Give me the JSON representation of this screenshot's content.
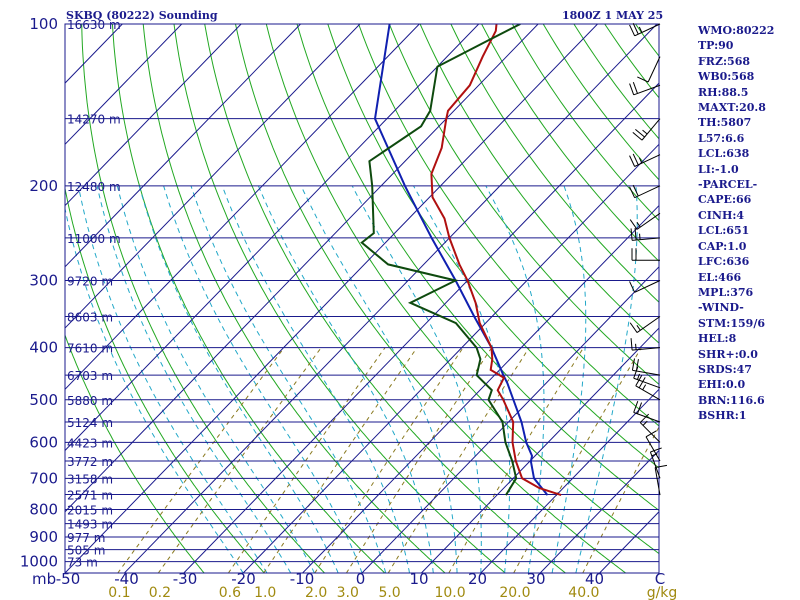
{
  "header": {
    "station": "SKBQ (80222) Sounding",
    "time": "1800Z  1 MAY 25"
  },
  "indices": [
    "WMO:80222",
    "TP:90",
    "FRZ:568",
    "WB0:568",
    "RH:88.5",
    "MAXT:20.8",
    "TH:5807",
    "L57:6.6",
    "LCL:638",
    "LI:-1.0",
    "-PARCEL-",
    "CAPE:66",
    "CINH:4",
    "LCL:651",
    "CAP:1.0",
    "LFC:636",
    "EL:466",
    "MPL:376",
    "-WIND-",
    "STM:159/6",
    "HEL:8",
    "SHR+:0.0",
    "SRDS:47",
    "EHI:0.0",
    "BRN:116.6",
    "BSHR:1"
  ],
  "colors": {
    "frame": "#1a1a8c",
    "isobar": "#1a1a8c",
    "isotherm": "#1a1a8c",
    "dry_adiabat": "#22a822",
    "moist_adiabat": "#22a8c8",
    "mixing_ratio": "#8a7a20",
    "temperature": "#b01010",
    "dewpoint": "#0e4a0e",
    "parcel": "#1020b0",
    "wind": "#000000"
  },
  "chart_data": {
    "type": "skew-t",
    "pressure_axis": {
      "unit": "mb",
      "ticks": [
        100,
        200,
        300,
        400,
        500,
        600,
        700,
        800,
        900,
        1000
      ],
      "range": [
        100,
        1050
      ],
      "scale": "log"
    },
    "temperature_axis": {
      "unit": "C",
      "ticks": [
        -50,
        -40,
        -30,
        -20,
        -10,
        0,
        10,
        20,
        30,
        40
      ],
      "last_label": "C",
      "range_at_bottom": [
        -50,
        50
      ]
    },
    "mixing_ratio_axis": {
      "unit": "g/kg",
      "labels": [
        "0.1",
        "0.2",
        "0.6",
        "1.0",
        "2.0",
        "3.0",
        "5.0",
        "10.0",
        "20.0",
        "40.0"
      ],
      "values": [
        0.1,
        0.2,
        0.6,
        1.0,
        2.0,
        3.0,
        5.0,
        10.0,
        20.0,
        40.0
      ]
    },
    "height_levels": [
      {
        "p": 100,
        "label": "16630 m"
      },
      {
        "p": 150,
        "label": "14270 m"
      },
      {
        "p": 200,
        "label": "12480 m"
      },
      {
        "p": 250,
        "label": "11000 m"
      },
      {
        "p": 300,
        "label": "9720 m"
      },
      {
        "p": 350,
        "label": "8603 m"
      },
      {
        "p": 400,
        "label": "7610 m"
      },
      {
        "p": 450,
        "label": "6703 m"
      },
      {
        "p": 500,
        "label": "5880 m"
      },
      {
        "p": 550,
        "label": "5124 m"
      },
      {
        "p": 600,
        "label": "4423 m"
      },
      {
        "p": 650,
        "label": "3772 m"
      },
      {
        "p": 700,
        "label": "3158 m"
      },
      {
        "p": 750,
        "label": "2571 m"
      },
      {
        "p": 800,
        "label": "2015 m"
      },
      {
        "p": 850,
        "label": "1493 m"
      },
      {
        "p": 900,
        "label": "977 m"
      },
      {
        "p": 950,
        "label": "505 m"
      },
      {
        "p": 1000,
        "label": "73 m"
      }
    ],
    "temperature": [
      [
        752,
        20.8
      ],
      [
        730,
        16
      ],
      [
        700,
        11.5
      ],
      [
        650,
        7.6
      ],
      [
        600,
        4
      ],
      [
        550,
        0.8
      ],
      [
        500,
        -4.5
      ],
      [
        480,
        -7
      ],
      [
        455,
        -8
      ],
      [
        440,
        -11.5
      ],
      [
        420,
        -13
      ],
      [
        400,
        -15
      ],
      [
        360,
        -21
      ],
      [
        330,
        -25
      ],
      [
        300,
        -30
      ],
      [
        280,
        -34
      ],
      [
        250,
        -40
      ],
      [
        230,
        -44
      ],
      [
        210,
        -49.5
      ],
      [
        190,
        -53.5
      ],
      [
        170,
        -56
      ],
      [
        150,
        -60
      ],
      [
        145,
        -61
      ],
      [
        130,
        -61.5
      ],
      [
        115,
        -64
      ],
      [
        103,
        -66
      ],
      [
        100,
        -67
      ]
    ],
    "dewpoint": [
      [
        752,
        11.5
      ],
      [
        700,
        10.5
      ],
      [
        650,
        7
      ],
      [
        600,
        2.8
      ],
      [
        550,
        -1
      ],
      [
        500,
        -7
      ],
      [
        480,
        -8
      ],
      [
        450,
        -13
      ],
      [
        420,
        -15
      ],
      [
        400,
        -17.5
      ],
      [
        360,
        -25
      ],
      [
        330,
        -36
      ],
      [
        300,
        -32
      ],
      [
        280,
        -46
      ],
      [
        255,
        -54
      ],
      [
        245,
        -53.5
      ],
      [
        200,
        -61.5
      ],
      [
        180,
        -66
      ],
      [
        155,
        -63
      ],
      [
        145,
        -64
      ],
      [
        120,
        -70
      ],
      [
        108,
        -66
      ],
      [
        100,
        -63
      ]
    ],
    "parcel": [
      [
        752,
        18.5
      ],
      [
        700,
        13.5
      ],
      [
        651,
        10.2
      ],
      [
        636,
        9.5
      ],
      [
        600,
        6.3
      ],
      [
        550,
        2.2
      ],
      [
        500,
        -2.8
      ],
      [
        466,
        -6.5
      ],
      [
        450,
        -8.5
      ],
      [
        400,
        -15
      ],
      [
        350,
        -23
      ],
      [
        300,
        -32
      ],
      [
        250,
        -43
      ],
      [
        200,
        -56
      ],
      [
        150,
        -72
      ],
      [
        100,
        -85
      ]
    ],
    "winds": [
      {
        "p": 100,
        "dir": 245,
        "spd": 25
      },
      {
        "p": 115,
        "dir": 205,
        "spd": 10
      },
      {
        "p": 130,
        "dir": 250,
        "spd": 20
      },
      {
        "p": 150,
        "dir": 220,
        "spd": 25
      },
      {
        "p": 175,
        "dir": 245,
        "spd": 25
      },
      {
        "p": 200,
        "dir": 245,
        "spd": 20
      },
      {
        "p": 225,
        "dir": 235,
        "spd": 15
      },
      {
        "p": 250,
        "dir": 265,
        "spd": 25
      },
      {
        "p": 275,
        "dir": 270,
        "spd": 20
      },
      {
        "p": 300,
        "dir": 245,
        "spd": 10
      },
      {
        "p": 350,
        "dir": 235,
        "spd": 15
      },
      {
        "p": 400,
        "dir": 265,
        "spd": 15
      },
      {
        "p": 450,
        "dir": 280,
        "spd": 20
      },
      {
        "p": 475,
        "dir": 290,
        "spd": 15
      },
      {
        "p": 500,
        "dir": 300,
        "spd": 25
      },
      {
        "p": 550,
        "dir": 290,
        "spd": 20
      },
      {
        "p": 600,
        "dir": 315,
        "spd": 15
      },
      {
        "p": 650,
        "dir": 330,
        "spd": 10
      },
      {
        "p": 700,
        "dir": 340,
        "spd": 15
      },
      {
        "p": 752,
        "dir": 350,
        "spd": 10
      }
    ]
  }
}
